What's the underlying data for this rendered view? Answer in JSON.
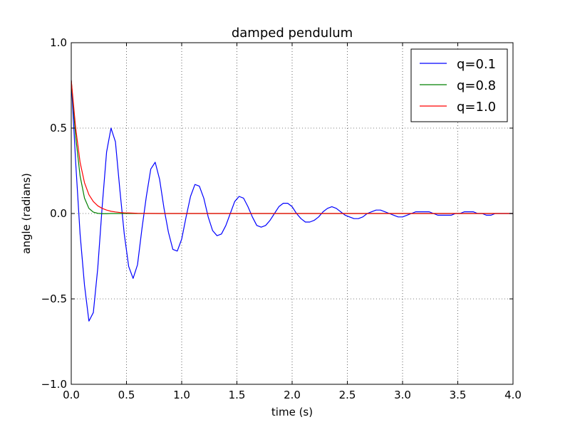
{
  "chart_data": {
    "type": "line",
    "title": "damped pendulum",
    "xlabel": "time (s)",
    "ylabel": "angle (radians)",
    "xlim": [
      0.0,
      4.0
    ],
    "ylim": [
      -1.0,
      1.0
    ],
    "xticks": [
      0.0,
      0.5,
      1.0,
      1.5,
      2.0,
      2.5,
      3.0,
      3.5,
      4.0
    ],
    "xtick_labels": [
      "0.0",
      "0.5",
      "1.0",
      "1.5",
      "2.0",
      "2.5",
      "3.0",
      "3.5",
      "4.0"
    ],
    "yticks": [
      -1.0,
      -0.5,
      0.0,
      0.5,
      1.0
    ],
    "ytick_labels": [
      "−1.0",
      "−0.5",
      "0.0",
      "0.5",
      "1.0"
    ],
    "grid": true,
    "legend_position": "top-right",
    "series": [
      {
        "name": "q=0.1",
        "color": "#0000ff",
        "x": [
          0.0,
          0.04,
          0.08,
          0.12,
          0.16,
          0.2,
          0.24,
          0.28,
          0.32,
          0.36,
          0.4,
          0.44,
          0.48,
          0.52,
          0.56,
          0.6,
          0.64,
          0.68,
          0.72,
          0.76,
          0.8,
          0.84,
          0.88,
          0.92,
          0.96,
          1.0,
          1.04,
          1.08,
          1.12,
          1.16,
          1.2,
          1.24,
          1.28,
          1.32,
          1.36,
          1.4,
          1.44,
          1.48,
          1.52,
          1.56,
          1.6,
          1.64,
          1.68,
          1.72,
          1.76,
          1.8,
          1.84,
          1.88,
          1.92,
          1.96,
          2.0,
          2.04,
          2.08,
          2.12,
          2.16,
          2.2,
          2.24,
          2.28,
          2.32,
          2.36,
          2.4,
          2.44,
          2.48,
          2.52,
          2.56,
          2.6,
          2.64,
          2.68,
          2.72,
          2.76,
          2.8,
          2.84,
          2.88,
          2.92,
          2.96,
          3.0,
          3.04,
          3.08,
          3.12,
          3.16,
          3.2,
          3.24,
          3.28,
          3.32,
          3.36,
          3.4,
          3.44,
          3.48,
          3.52,
          3.56,
          3.6,
          3.64,
          3.68,
          3.72,
          3.76,
          3.8,
          3.84,
          3.88,
          3.92,
          3.96,
          4.0
        ],
        "y": [
          0.78,
          0.3,
          -0.12,
          -0.42,
          -0.63,
          -0.58,
          -0.32,
          0.04,
          0.36,
          0.5,
          0.42,
          0.14,
          -0.12,
          -0.31,
          -0.38,
          -0.3,
          -0.09,
          0.1,
          0.26,
          0.3,
          0.2,
          0.03,
          -0.11,
          -0.21,
          -0.22,
          -0.15,
          -0.02,
          0.1,
          0.17,
          0.16,
          0.09,
          -0.02,
          -0.1,
          -0.13,
          -0.12,
          -0.07,
          0.0,
          0.07,
          0.1,
          0.09,
          0.04,
          -0.02,
          -0.07,
          -0.08,
          -0.07,
          -0.04,
          0.0,
          0.04,
          0.06,
          0.06,
          0.04,
          0.0,
          -0.03,
          -0.05,
          -0.05,
          -0.04,
          -0.02,
          0.01,
          0.03,
          0.04,
          0.03,
          0.01,
          -0.01,
          -0.02,
          -0.03,
          -0.03,
          -0.02,
          0.0,
          0.01,
          0.02,
          0.02,
          0.01,
          0.0,
          -0.01,
          -0.02,
          -0.02,
          -0.01,
          0.0,
          0.01,
          0.01,
          0.01,
          0.01,
          0.0,
          -0.01,
          -0.01,
          -0.01,
          -0.01,
          0.0,
          0.0,
          0.01,
          0.01,
          0.01,
          0.0,
          0.0,
          -0.01,
          -0.01,
          0.0,
          0.0,
          0.0,
          0.0,
          0.0
        ]
      },
      {
        "name": "q=0.8",
        "color": "#008000",
        "x": [
          0.0,
          0.04,
          0.08,
          0.12,
          0.16,
          0.2,
          0.24,
          0.28,
          0.32,
          0.36,
          0.4,
          0.48,
          0.6,
          0.8,
          1.0,
          1.5,
          2.0,
          2.5,
          3.0,
          3.5,
          4.0
        ],
        "y": [
          0.78,
          0.45,
          0.22,
          0.09,
          0.03,
          0.008,
          0.001,
          -0.001,
          -0.001,
          0.0,
          0.0,
          0.0,
          0.0,
          0.0,
          0.0,
          0.0,
          0.0,
          0.0,
          0.0,
          0.0,
          0.0
        ]
      },
      {
        "name": "q=1.0",
        "color": "#ff0000",
        "x": [
          0.0,
          0.04,
          0.08,
          0.12,
          0.16,
          0.2,
          0.24,
          0.28,
          0.32,
          0.36,
          0.4,
          0.44,
          0.48,
          0.52,
          0.56,
          0.6,
          0.7,
          0.8,
          1.0,
          1.5,
          2.0,
          2.5,
          3.0,
          3.5,
          4.0
        ],
        "y": [
          0.78,
          0.5,
          0.3,
          0.18,
          0.11,
          0.07,
          0.045,
          0.03,
          0.02,
          0.013,
          0.009,
          0.006,
          0.004,
          0.003,
          0.002,
          0.001,
          0.0005,
          0.0,
          0.0,
          0.0,
          0.0,
          0.0,
          0.0,
          0.0,
          0.0
        ]
      }
    ]
  }
}
